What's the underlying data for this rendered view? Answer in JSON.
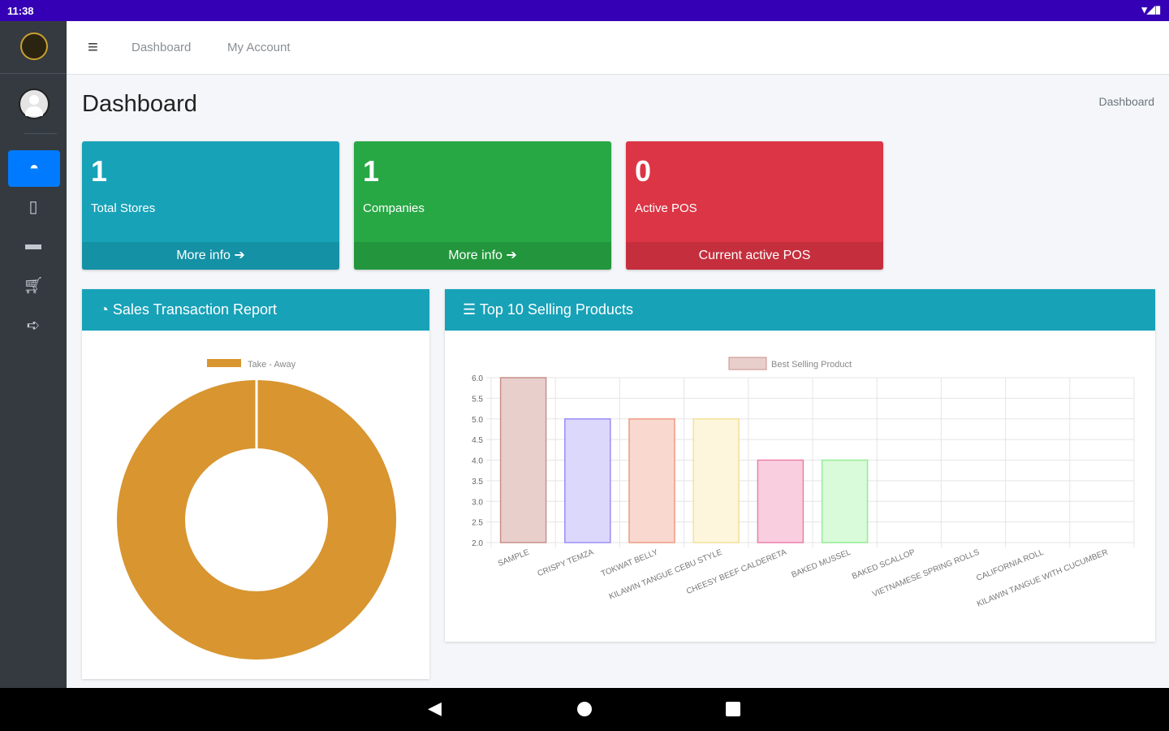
{
  "status_bar": {
    "time": "11:38"
  },
  "topbar": {
    "menu_icon": "hamburger-icon",
    "links": [
      "Dashboard",
      "My Account"
    ]
  },
  "page": {
    "title": "Dashboard",
    "breadcrumb": "Dashboard"
  },
  "info_boxes": [
    {
      "value": "1",
      "label": "Total Stores",
      "footer": "More info",
      "color": "#17a2b8"
    },
    {
      "value": "1",
      "label": "Companies",
      "footer": "More info",
      "color": "#28a745"
    },
    {
      "value": "0",
      "label": "Active POS",
      "footer": "Current active POS",
      "color": "#dc3545"
    }
  ],
  "sales_card": {
    "title": "Sales Transaction Report"
  },
  "top_card": {
    "title": "Top 10 Selling Products"
  },
  "chart_data": [
    {
      "type": "pie",
      "subtype": "doughnut",
      "legend": [
        "Take - Away"
      ],
      "values": [
        1
      ],
      "colors": [
        "#d89530"
      ]
    },
    {
      "type": "bar",
      "legend": [
        "Best Selling Product"
      ],
      "categories": [
        "SAMPLE",
        "CRISPY TEMZA",
        "TOKWAT BELLY",
        "KILAWIN TANGUE CEBU STYLE",
        "CHEESY BEEF CALDERETA",
        "BAKED MUSSEL",
        "BAKED SCALLOP",
        "VIETNAMESE SPRING ROLLS",
        "CALIFORNIA ROLL",
        "KILAWIN TANGUE WITH CUCUMBER"
      ],
      "values": [
        6,
        5,
        5,
        5,
        4,
        4,
        2,
        2,
        2,
        2
      ],
      "ylim": [
        2,
        6
      ],
      "yticks": [
        "2.0",
        "2.5",
        "3.0",
        "3.5",
        "4.0",
        "4.5",
        "5.0",
        "5.5",
        "6.0"
      ],
      "fill": [
        "#e8cfcc",
        "#dcd8fb",
        "#f9d9cf",
        "#fdf6dc",
        "#f9cfe0",
        "#d9fbd9",
        "#ddd",
        "#ddd",
        "#ddd",
        "#ddd"
      ],
      "stroke": [
        "#c98f8a",
        "#9c8cf5",
        "#ee9a84",
        "#f4e19a",
        "#ec7fa8",
        "#94ec94",
        "#ccc",
        "#ccc",
        "#ccc",
        "#ccc"
      ]
    }
  ]
}
